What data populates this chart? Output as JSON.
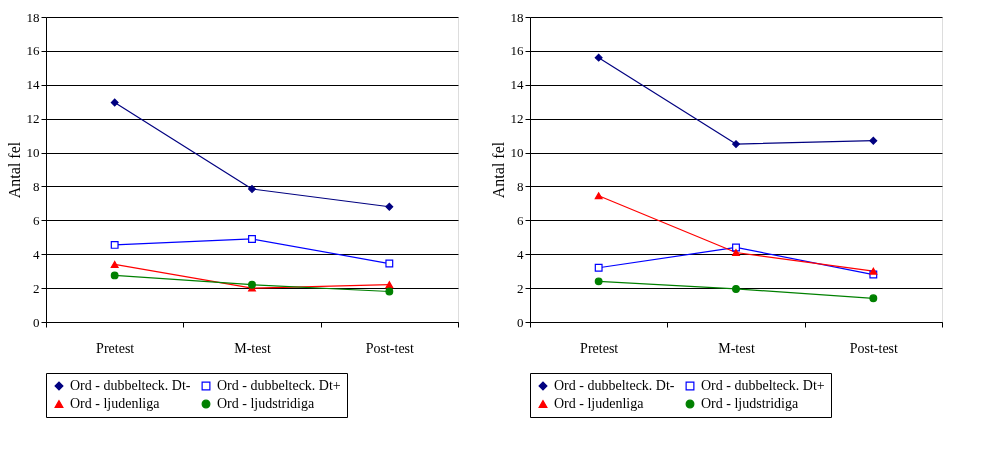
{
  "chart_data": [
    {
      "type": "line",
      "ylabel": "Antal fel",
      "categories": [
        "Pretest",
        "M-test",
        "Post-test"
      ],
      "ylim": [
        0,
        18
      ],
      "yticks": [
        0,
        2,
        4,
        6,
        8,
        10,
        12,
        14,
        16,
        18
      ],
      "grid": "y",
      "legend": "bottom",
      "series": [
        {
          "name": "Ord - dubbelteck. Dt-",
          "color": "#000080",
          "marker": "diamond",
          "values": [
            12.95,
            7.85,
            6.8
          ]
        },
        {
          "name": "Ord - dubbelteck. Dt+",
          "color": "#0000ff",
          "marker": "square",
          "values": [
            4.55,
            4.9,
            3.45
          ]
        },
        {
          "name": "Ord - ljudenliga",
          "color": "#ff0000",
          "marker": "triangle",
          "values": [
            3.4,
            2.0,
            2.2
          ]
        },
        {
          "name": "Ord - ljudstridiga",
          "color": "#008000",
          "marker": "circle",
          "values": [
            2.75,
            2.2,
            1.8
          ]
        }
      ]
    },
    {
      "type": "line",
      "ylabel": "Antal fel",
      "categories": [
        "Pretest",
        "M-test",
        "Post-test"
      ],
      "ylim": [
        0,
        18
      ],
      "yticks": [
        0,
        2,
        4,
        6,
        8,
        10,
        12,
        14,
        16,
        18
      ],
      "grid": "y",
      "legend": "bottom",
      "series": [
        {
          "name": "Ord - dubbelteck. Dt-",
          "color": "#000080",
          "marker": "diamond",
          "values": [
            15.6,
            10.5,
            10.7
          ]
        },
        {
          "name": "Ord - dubbelteck. Dt+",
          "color": "#0000ff",
          "marker": "square",
          "values": [
            3.2,
            4.4,
            2.8
          ]
        },
        {
          "name": "Ord - ljudenliga",
          "color": "#ff0000",
          "marker": "triangle",
          "values": [
            7.45,
            4.1,
            3.0
          ]
        },
        {
          "name": "Ord - ljudstridiga",
          "color": "#008000",
          "marker": "circle",
          "values": [
            2.4,
            1.95,
            1.4
          ]
        }
      ]
    }
  ]
}
